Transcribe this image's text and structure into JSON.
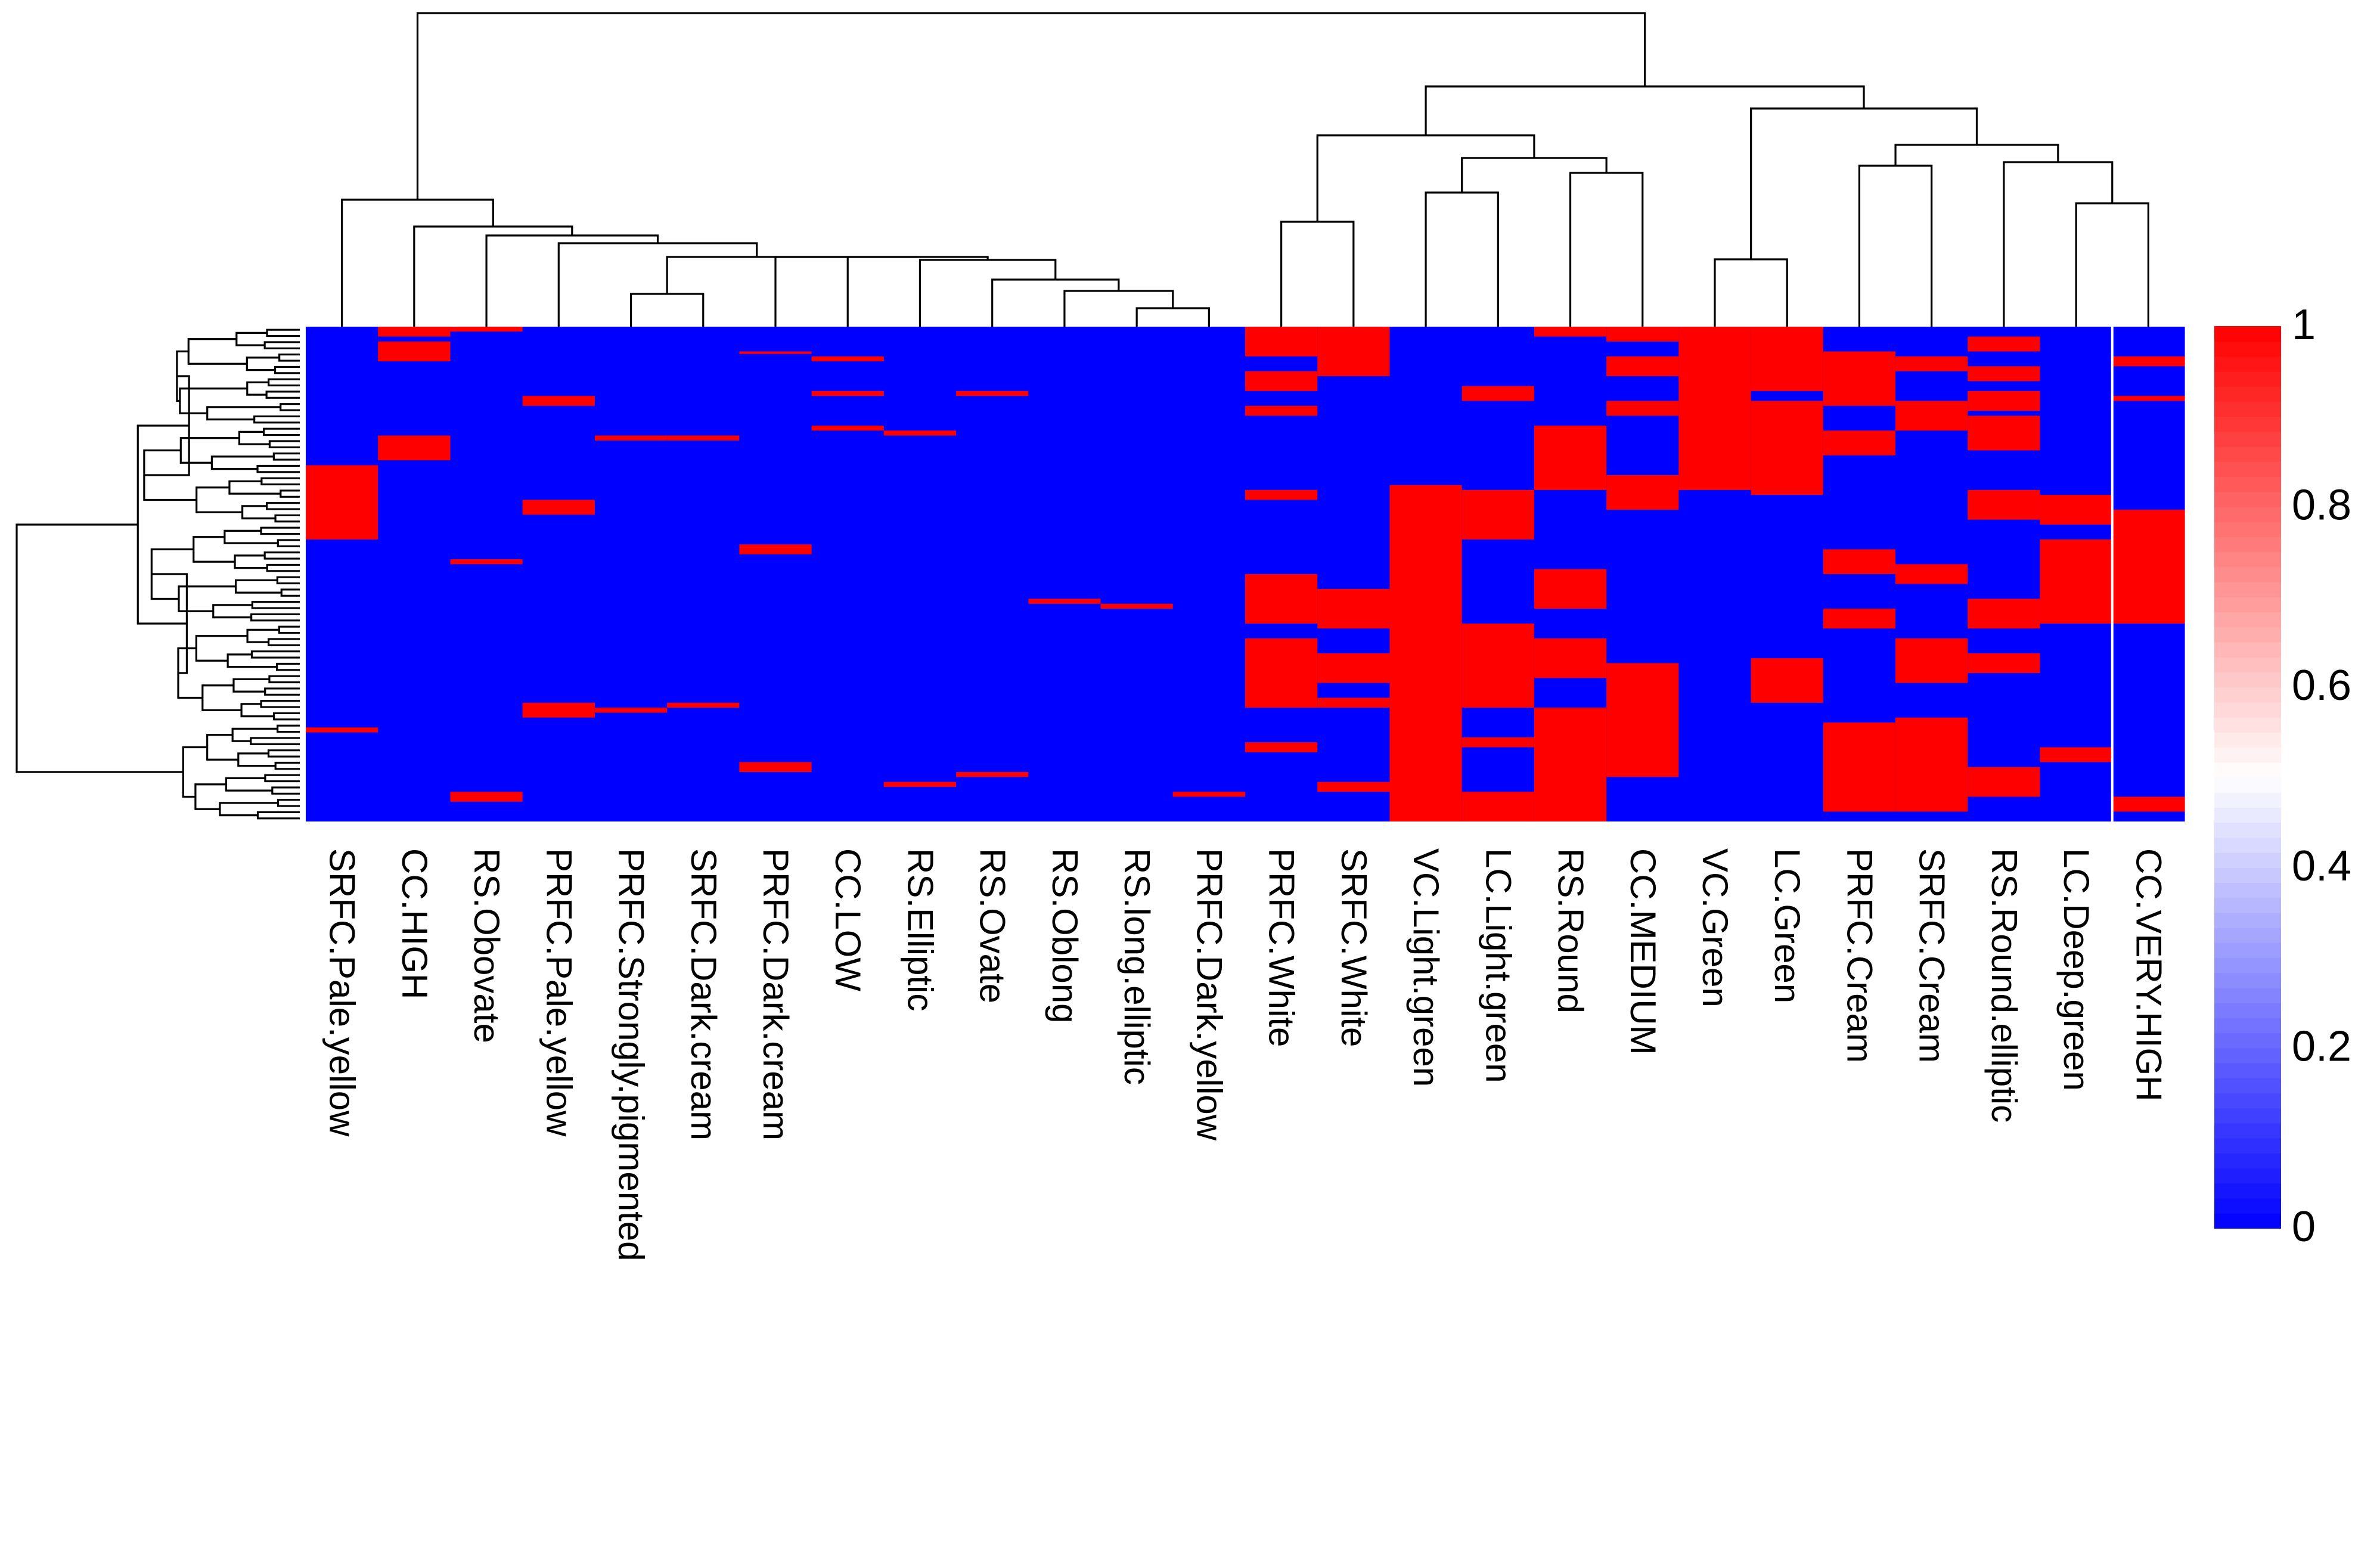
{
  "chart_data": {
    "type": "heatmap",
    "title": "",
    "xlabel": "",
    "ylabel": "",
    "columns": [
      "SRFC.Pale.yellow",
      "CC.HIGH",
      "RS.Obovate",
      "PRFC.Pale.yellow",
      "PRFC.Strongly.pigmented",
      "SRFC.Dark.cream",
      "PRFC.Dark.cream",
      "CC.LOW",
      "RS.Elliptic",
      "RS.Ovate",
      "RS.Oblong",
      "RS.long.elliptic",
      "PRFC.Dark.yellow",
      "PRFC.White",
      "SRFC.White",
      "VC.Light.green",
      "LC.Light.green",
      "RS.Round",
      "CC.MEDIUM",
      "VC.Green",
      "LC.Green",
      "PRFC.Cream",
      "SRFC.Cream",
      "RS.Round.elliptic",
      "LC.Deep.green",
      "CC.VERY.HIGH"
    ],
    "value_range": [
      0,
      1
    ],
    "colorbar": {
      "ticks": [
        0,
        0.2,
        0.4,
        0.6,
        0.8,
        1
      ],
      "tick_labels": [
        "0",
        "0.2",
        "0.4",
        "0.6",
        "0.8",
        "1"
      ],
      "low_color": "#0000FF",
      "mid_color": "#FFFFFF",
      "high_color": "#FF0000"
    },
    "row_count": 80,
    "column_red_blocks": [
      [
        [
          0.28,
          0.43
        ],
        [
          0.81,
          0.82
        ]
      ],
      [
        [
          0.0,
          0.02
        ],
        [
          0.03,
          0.07
        ],
        [
          0.22,
          0.27
        ]
      ],
      [
        [
          0.0,
          0.01
        ],
        [
          0.47,
          0.48
        ],
        [
          0.94,
          0.96
        ]
      ],
      [
        [
          0.14,
          0.16
        ],
        [
          0.35,
          0.38
        ],
        [
          0.76,
          0.79
        ]
      ],
      [
        [
          0.22,
          0.23
        ],
        [
          0.77,
          0.78
        ]
      ],
      [
        [
          0.22,
          0.23
        ],
        [
          0.76,
          0.77
        ]
      ],
      [
        [
          0.05,
          0.055
        ],
        [
          0.44,
          0.46
        ],
        [
          0.88,
          0.9
        ]
      ],
      [
        [
          0.06,
          0.07
        ],
        [
          0.13,
          0.14
        ],
        [
          0.2,
          0.21
        ]
      ],
      [
        [
          0.21,
          0.22
        ],
        [
          0.92,
          0.93
        ]
      ],
      [
        [
          0.13,
          0.14
        ],
        [
          0.9,
          0.91
        ]
      ],
      [
        [
          0.55,
          0.56
        ]
      ],
      [
        [
          0.56,
          0.57
        ]
      ],
      [
        [
          0.94,
          0.95
        ]
      ],
      [
        [
          0.0,
          0.06
        ],
        [
          0.09,
          0.13
        ],
        [
          0.16,
          0.18
        ],
        [
          0.33,
          0.35
        ],
        [
          0.5,
          0.6
        ],
        [
          0.63,
          0.77
        ],
        [
          0.84,
          0.86
        ]
      ],
      [
        [
          0.0,
          0.1
        ],
        [
          0.53,
          0.61
        ],
        [
          0.66,
          0.72
        ],
        [
          0.75,
          0.77
        ],
        [
          0.92,
          0.94
        ]
      ],
      [
        [
          0.32,
          1.0
        ]
      ],
      [
        [
          0.12,
          0.15
        ],
        [
          0.33,
          0.43
        ],
        [
          0.6,
          0.77
        ],
        [
          0.83,
          0.85
        ],
        [
          0.94,
          1.0
        ]
      ],
      [
        [
          0.0,
          0.02
        ],
        [
          0.2,
          0.33
        ],
        [
          0.49,
          0.57
        ],
        [
          0.63,
          0.71
        ],
        [
          0.77,
          1.0
        ]
      ],
      [
        [
          0.0,
          0.03
        ],
        [
          0.06,
          0.1
        ],
        [
          0.15,
          0.18
        ],
        [
          0.3,
          0.37
        ],
        [
          0.68,
          0.91
        ]
      ],
      [
        [
          0.0,
          0.33
        ]
      ],
      [
        [
          0.0,
          0.13
        ],
        [
          0.15,
          0.34
        ],
        [
          0.67,
          0.76
        ]
      ],
      [
        [
          0.05,
          0.1
        ],
        [
          0.1,
          0.16
        ],
        [
          0.21,
          0.26
        ],
        [
          0.45,
          0.5
        ],
        [
          0.57,
          0.61
        ],
        [
          0.8,
          0.98
        ]
      ],
      [
        [
          0.06,
          0.09
        ],
        [
          0.15,
          0.21
        ],
        [
          0.48,
          0.52
        ],
        [
          0.63,
          0.72
        ],
        [
          0.79,
          0.98
        ]
      ],
      [
        [
          0.02,
          0.05
        ],
        [
          0.08,
          0.11
        ],
        [
          0.13,
          0.17
        ],
        [
          0.18,
          0.25
        ],
        [
          0.33,
          0.39
        ],
        [
          0.55,
          0.61
        ],
        [
          0.66,
          0.7
        ],
        [
          0.89,
          0.95
        ]
      ],
      [
        [
          0.34,
          0.4
        ],
        [
          0.43,
          0.6
        ],
        [
          0.85,
          0.88
        ]
      ],
      [
        [
          0.06,
          0.08
        ],
        [
          0.14,
          0.15
        ],
        [
          0.37,
          0.6
        ],
        [
          0.95,
          0.98
        ]
      ]
    ]
  }
}
